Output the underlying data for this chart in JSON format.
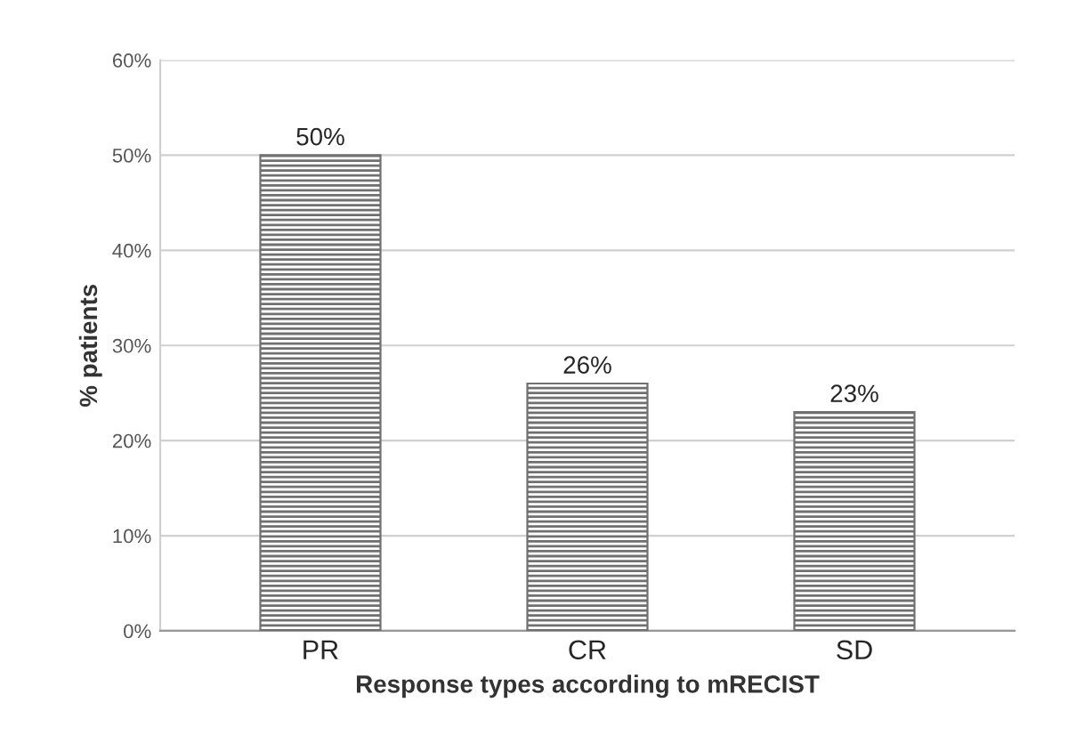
{
  "chart_data": {
    "type": "bar",
    "xlabel": "Response types according to mRECIST",
    "ylabel": "% patients",
    "categories": [
      "PR",
      "CR",
      "SD"
    ],
    "values": [
      50,
      26,
      23
    ],
    "value_labels": [
      "50%",
      "26%",
      "23%"
    ],
    "color": "#707070",
    "ylim": [
      0,
      60
    ],
    "yticks": [
      {
        "value": 0,
        "label": "0%"
      },
      {
        "value": 10,
        "label": "10%"
      },
      {
        "value": 20,
        "label": "20%"
      },
      {
        "value": 30,
        "label": "30%"
      },
      {
        "value": 40,
        "label": "40%"
      },
      {
        "value": 50,
        "label": "50%"
      },
      {
        "value": 60,
        "label": "60%"
      }
    ],
    "grid": "y"
  }
}
